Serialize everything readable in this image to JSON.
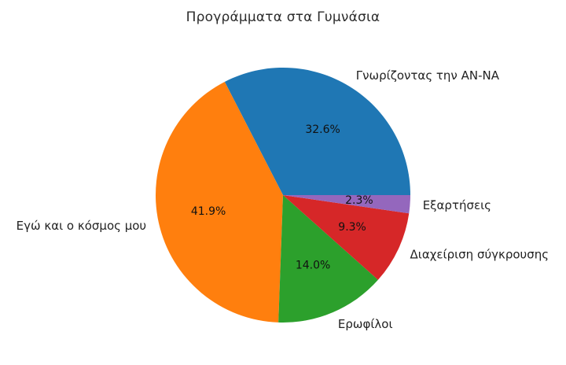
{
  "chart_data": {
    "type": "pie",
    "title": "Προγράμματα στα Γυμνάσια",
    "labels": [
      "Γνωρίζοντας την ΑΝ-ΝΑ",
      "Εγώ και ο κόσμος μου",
      "Ερωφίλοι",
      "Διαχείριση σύγκρουσης",
      "Εξαρτήσεις"
    ],
    "values": [
      32.6,
      41.9,
      14.0,
      9.3,
      2.3
    ],
    "pct_labels": [
      "32.6%",
      "2.3%",
      "9.3%",
      "14.0%",
      "41.9%"
    ],
    "pct_label_by_slice": [
      "32.6%",
      "41.9%",
      "14.0%",
      "9.3%",
      "2.3%"
    ],
    "colors": [
      "#1f77b4",
      "#ff7f0e",
      "#2ca02c",
      "#d62728",
      "#9467bd"
    ],
    "start_angle_deg": 0,
    "direction": "counterclockwise",
    "legend": false,
    "label_distance": 1.1,
    "pct_distance": 0.6
  }
}
